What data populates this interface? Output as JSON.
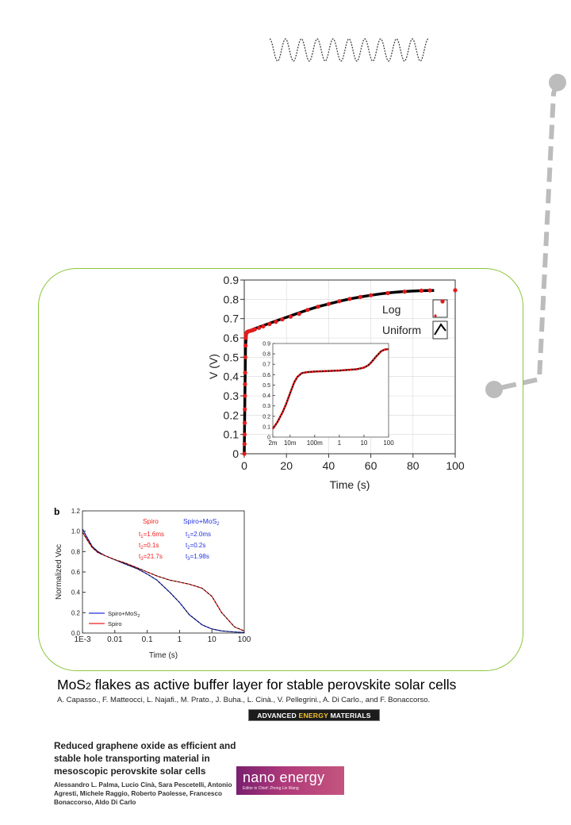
{
  "chart_data": [
    {
      "type": "line",
      "title": "",
      "xlabel": "Time (s)",
      "ylabel": "V (V)",
      "xlim": [
        0,
        100
      ],
      "ylim": [
        0,
        0.9
      ],
      "xticks": [
        "0",
        "20",
        "40",
        "60",
        "80",
        "100"
      ],
      "yticks": [
        "0",
        "0.1",
        "0.2",
        "0.3",
        "0.4",
        "0.5",
        "0.6",
        "0.7",
        "0.8",
        "0.9"
      ],
      "legend_placement": "right",
      "legend": [
        "Log",
        "Uniform"
      ],
      "series": [
        {
          "name": "Uniform",
          "color": "#000000",
          "x": [
            0,
            0.3,
            0.6,
            1,
            2,
            5,
            10,
            15,
            20,
            25,
            30,
            35,
            40,
            45,
            50,
            55,
            60,
            65,
            70,
            75,
            80,
            85,
            90
          ],
          "y": [
            0,
            0.3,
            0.55,
            0.62,
            0.635,
            0.648,
            0.668,
            0.688,
            0.707,
            0.726,
            0.745,
            0.762,
            0.776,
            0.79,
            0.802,
            0.812,
            0.821,
            0.829,
            0.835,
            0.84,
            0.843,
            0.845,
            0.846
          ]
        },
        {
          "name": "Log",
          "color": "#e41a1c",
          "x": [
            0.05,
            0.1,
            0.15,
            0.2,
            0.25,
            0.3,
            0.35,
            0.4,
            0.5,
            0.6,
            0.7,
            0.8,
            1,
            1.3,
            1.6,
            2,
            3,
            4,
            5,
            7,
            9,
            12,
            15,
            18,
            22,
            26,
            30,
            35,
            40,
            45,
            50,
            55,
            60,
            68,
            76,
            84,
            88,
            100
          ],
          "y": [
            0,
            0.05,
            0.1,
            0.16,
            0.23,
            0.3,
            0.36,
            0.42,
            0.5,
            0.56,
            0.6,
            0.615,
            0.625,
            0.63,
            0.632,
            0.634,
            0.637,
            0.64,
            0.645,
            0.652,
            0.66,
            0.672,
            0.684,
            0.696,
            0.71,
            0.725,
            0.745,
            0.762,
            0.776,
            0.79,
            0.802,
            0.812,
            0.821,
            0.832,
            0.84,
            0.845,
            0.846,
            0.847
          ]
        }
      ],
      "inset": {
        "type": "line",
        "xscale": "log",
        "xlim": [
          0.002,
          100
        ],
        "ylim": [
          0,
          0.9
        ],
        "xticks": [
          "2m",
          "10m",
          "100m",
          "1",
          "10",
          "100"
        ],
        "yticks": [
          "0",
          "0.1",
          "0.2",
          "0.3",
          "0.4",
          "0.5",
          "0.6",
          "0.7",
          "0.8",
          "0.9"
        ],
        "x": [
          0.002,
          0.003,
          0.005,
          0.007,
          0.01,
          0.015,
          0.02,
          0.03,
          0.05,
          0.1,
          0.2,
          0.5,
          1,
          2,
          5,
          10,
          15,
          20,
          30,
          50,
          70,
          100
        ],
        "y": [
          0.08,
          0.14,
          0.24,
          0.32,
          0.42,
          0.53,
          0.58,
          0.615,
          0.625,
          0.63,
          0.633,
          0.637,
          0.64,
          0.645,
          0.652,
          0.668,
          0.69,
          0.72,
          0.77,
          0.825,
          0.842,
          0.846
        ]
      }
    },
    {
      "type": "line",
      "panel_label": "b",
      "xlabel": "Time (s)",
      "ylabel": "Normalized Voc",
      "xscale": "log",
      "xlim": [
        0.001,
        100
      ],
      "ylim": [
        0,
        1.2
      ],
      "xticks": [
        "1E-3",
        "0.01",
        "0.1",
        "1",
        "10",
        "100"
      ],
      "yticks": [
        "0.0",
        "0.2",
        "0.4",
        "0.6",
        "0.8",
        "1.0",
        "1.2"
      ],
      "legend_placement": "bottom-left",
      "fit_params": [
        {
          "label": "Spiro",
          "color": "#ee2222",
          "lines": [
            "t1=1.6ms",
            "t2=0.1s",
            "t3=21.7s"
          ]
        },
        {
          "label": "Spiro+MoS2",
          "color": "#2233dd",
          "lines": [
            "t1=2.0ms",
            "t2=0.2s",
            "t3=1.98s"
          ]
        }
      ],
      "series": [
        {
          "name": "Spiro+MoS2",
          "color": "#2233dd",
          "x": [
            0.001,
            0.0015,
            0.002,
            0.003,
            0.005,
            0.01,
            0.02,
            0.05,
            0.1,
            0.2,
            0.5,
            1,
            2,
            5,
            10,
            20,
            50,
            100
          ],
          "y": [
            1.02,
            0.92,
            0.85,
            0.8,
            0.76,
            0.72,
            0.68,
            0.63,
            0.58,
            0.52,
            0.4,
            0.3,
            0.18,
            0.08,
            0.04,
            0.02,
            0.01,
            0.005
          ]
        },
        {
          "name": "Spiro",
          "color": "#ee2222",
          "x": [
            0.001,
            0.0015,
            0.002,
            0.003,
            0.005,
            0.01,
            0.02,
            0.05,
            0.1,
            0.2,
            0.5,
            1,
            2,
            5,
            10,
            20,
            50,
            100
          ],
          "y": [
            0.99,
            0.9,
            0.84,
            0.79,
            0.76,
            0.72,
            0.69,
            0.64,
            0.6,
            0.56,
            0.52,
            0.5,
            0.48,
            0.44,
            0.36,
            0.2,
            0.06,
            0.02
          ]
        }
      ]
    }
  ],
  "paper1": {
    "title_main": "MoS",
    "title_sub": "2",
    "title_rest": " flakes as active buffer layer for stable perovskite solar cells",
    "authors": "A. Capasso., F. Matteocci, L. Najafi., M. Prato., J. Buha., L. Cinà., V. Pellegrini., A. Di Carlo., and F. Bonaccorso.",
    "journal_logo": {
      "part1": "ADVANCED ",
      "part2": "ENERGY",
      "part3": " MATERIALS"
    }
  },
  "paper2": {
    "title": "Reduced graphene oxide as efficient and stable hole transporting material in mesoscopic perovskite solar cells",
    "authors": "Alessandro L. Palma, Lucio Cinà, Sara Pescetelli, Antonio Agresti, Michele Raggio, Roberto Paolesse, Francesco Bonaccorso, Aldo Di Carlo",
    "journal_logo": {
      "name": "nano energy",
      "editor": "Editor in Chief: Zhong Lin Wang"
    }
  }
}
